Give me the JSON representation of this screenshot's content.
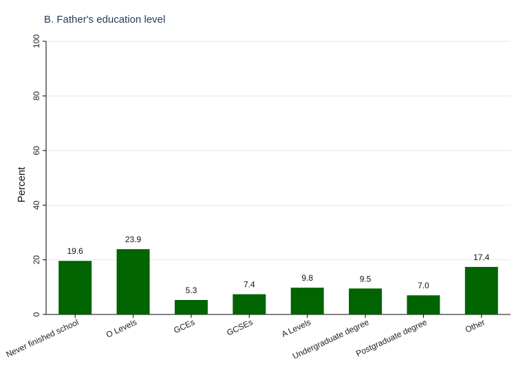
{
  "chart_data": {
    "type": "bar",
    "title": "B. Father's education level",
    "xlabel": "",
    "ylabel": "Percent",
    "ylim": [
      0,
      100
    ],
    "yticks": [
      0,
      20,
      40,
      60,
      80,
      100
    ],
    "categories": [
      "Never finished school",
      "O Levels",
      "GCEs",
      "GCSEs",
      "A Levels",
      "Undergraduate degree",
      "Postgraduate degree",
      "Other"
    ],
    "values": [
      19.6,
      23.9,
      5.3,
      7.4,
      9.8,
      9.5,
      7.0,
      17.4
    ],
    "value_labels": [
      "19.6",
      "23.9",
      "5.3",
      "7.4",
      "9.8",
      "9.5",
      "7.0",
      "17.4"
    ],
    "bar_color": "#006400",
    "grid": true,
    "legend": "none"
  }
}
